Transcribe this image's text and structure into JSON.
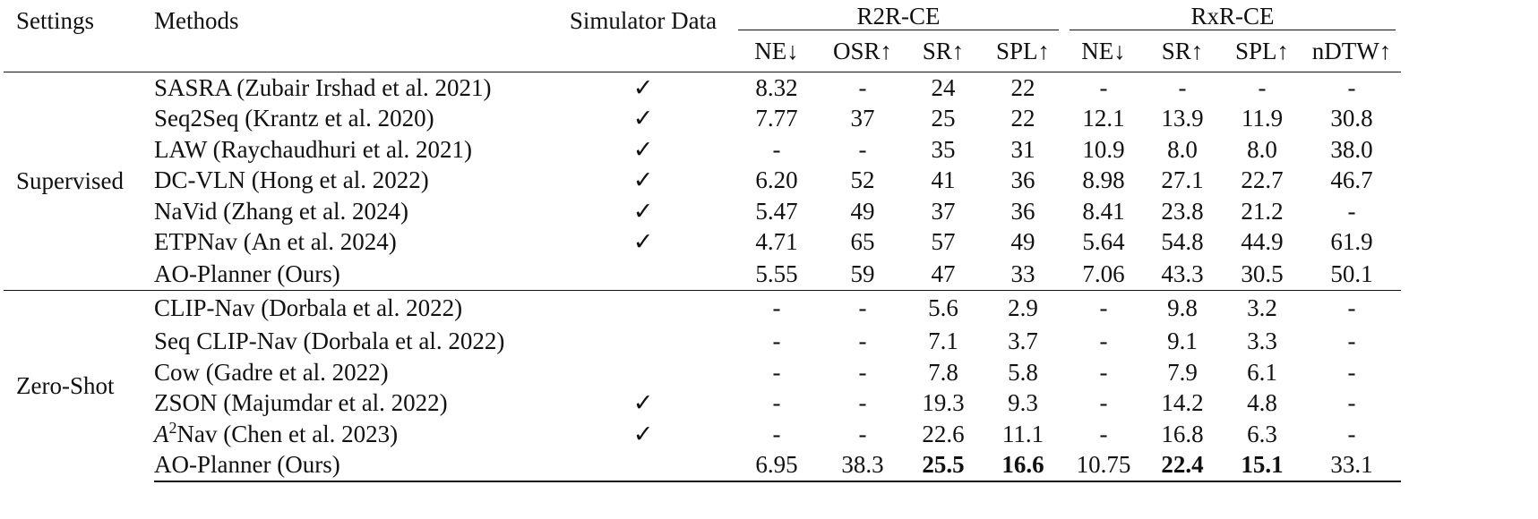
{
  "headers": {
    "settings": "Settings",
    "methods": "Methods",
    "simulator": "Simulator Data",
    "r2r": "R2R-CE",
    "rxr": "RxR-CE",
    "r2r_cols": [
      "NE↓",
      "OSR↑",
      "SR↑",
      "SPL↑"
    ],
    "rxr_cols": [
      "NE↓",
      "SR↑",
      "SPL↑",
      "nDTW↑"
    ]
  },
  "groups": [
    {
      "setting": "Supervised",
      "rows": [
        {
          "method": "SASRA (Zubair Irshad et al. 2021)",
          "sim": "✓",
          "r2r": [
            "8.32",
            "-",
            "24",
            "22"
          ],
          "rxr": [
            "-",
            "-",
            "-",
            "-"
          ]
        },
        {
          "method": "Seq2Seq (Krantz et al. 2020)",
          "sim": "✓",
          "r2r": [
            "7.77",
            "37",
            "25",
            "22"
          ],
          "rxr": [
            "12.1",
            "13.9",
            "11.9",
            "30.8"
          ]
        },
        {
          "method": "LAW (Raychaudhuri et al. 2021)",
          "sim": "✓",
          "r2r": [
            "-",
            "-",
            "35",
            "31"
          ],
          "rxr": [
            "10.9",
            "8.0",
            "8.0",
            "38.0"
          ]
        },
        {
          "method": "DC-VLN (Hong et al. 2022)",
          "sim": "✓",
          "r2r": [
            "6.20",
            "52",
            "41",
            "36"
          ],
          "rxr": [
            "8.98",
            "27.1",
            "22.7",
            "46.7"
          ]
        },
        {
          "method": "NaVid (Zhang et al. 2024)",
          "sim": "✓",
          "r2r": [
            "5.47",
            "49",
            "37",
            "36"
          ],
          "rxr": [
            "8.41",
            "23.8",
            "21.2",
            "-"
          ]
        },
        {
          "method": "ETPNav (An et al. 2024)",
          "sim": "✓",
          "r2r": [
            "4.71",
            "65",
            "57",
            "49"
          ],
          "rxr": [
            "5.64",
            "54.8",
            "44.9",
            "61.9"
          ]
        },
        {
          "method": "AO-Planner (Ours)",
          "sim": "",
          "r2r": [
            "5.55",
            "59",
            "47",
            "33"
          ],
          "rxr": [
            "7.06",
            "43.3",
            "30.5",
            "50.1"
          ]
        }
      ]
    },
    {
      "setting": "Zero-Shot",
      "rows": [
        {
          "method": "CLIP-Nav (Dorbala et al. 2022)",
          "sim": "",
          "r2r": [
            "-",
            "-",
            "5.6",
            "2.9"
          ],
          "rxr": [
            "-",
            "9.8",
            "3.2",
            "-"
          ]
        },
        {
          "method": "Seq CLIP-Nav (Dorbala et al. 2022)",
          "sim": "",
          "r2r": [
            "-",
            "-",
            "7.1",
            "3.7"
          ],
          "rxr": [
            "-",
            "9.1",
            "3.3",
            "-"
          ]
        },
        {
          "method": "Cow (Gadre et al. 2022)",
          "sim": "",
          "r2r": [
            "-",
            "-",
            "7.8",
            "5.8"
          ],
          "rxr": [
            "-",
            "7.9",
            "6.1",
            "-"
          ]
        },
        {
          "method": "ZSON (Majumdar et al. 2022)",
          "sim": "✓",
          "r2r": [
            "-",
            "-",
            "19.3",
            "9.3"
          ],
          "rxr": [
            "-",
            "14.2",
            "4.8",
            "-"
          ]
        },
        {
          "method_prefix": "A",
          "method_sup": "2",
          "method": "Nav (Chen et al. 2023)",
          "sim": "✓",
          "r2r": [
            "-",
            "-",
            "22.6",
            "11.1"
          ],
          "rxr": [
            "-",
            "16.8",
            "6.3",
            "-"
          ]
        },
        {
          "method": "AO-Planner (Ours)",
          "sim": "",
          "r2r": [
            "6.95",
            "38.3",
            "25.5",
            "16.6"
          ],
          "rxr": [
            "10.75",
            "22.4",
            "15.1",
            "33.1"
          ],
          "bold_r2r": [
            false,
            false,
            true,
            true
          ],
          "bold_rxr": [
            false,
            true,
            true,
            false
          ]
        }
      ]
    }
  ]
}
